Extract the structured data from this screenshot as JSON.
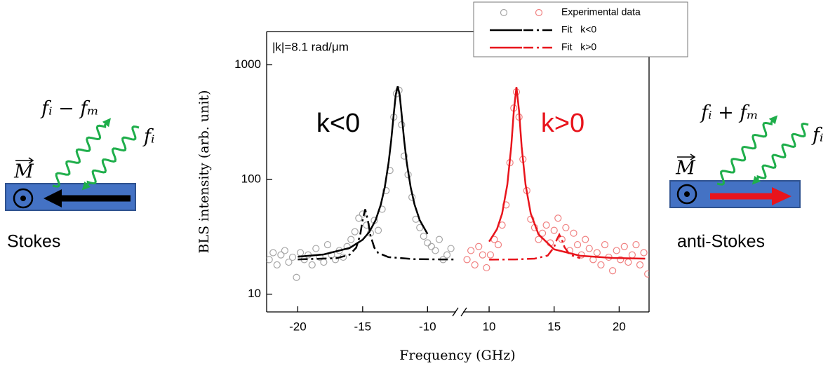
{
  "chart_data": {
    "type": "scatter",
    "x_label": "Frequency (GHz)",
    "y_label": "BLS intensity (arb. unit)",
    "note": "|k|=8.1 rad/μm",
    "log_y": true,
    "ylim": [
      7,
      1950
    ],
    "yticks": [
      10,
      100,
      1000
    ],
    "panels": [
      {
        "xlim": [
          -22.4,
          -7.8
        ],
        "xticks": [
          -20,
          -15,
          -10
        ]
      },
      {
        "xlim": [
          8,
          22.3
        ],
        "xticks": [
          10,
          15,
          20
        ]
      }
    ],
    "annotations": [
      {
        "text": "k<0",
        "color": "#000000"
      },
      {
        "text": "k>0",
        "color": "#e8141c"
      }
    ],
    "series": [
      {
        "name": "Experimental data",
        "marker": "circle",
        "color": "#a6a6a6",
        "x": [
          -22.2,
          -21.9,
          -21.6,
          -21.3,
          -21.0,
          -20.7,
          -20.4,
          -20.1,
          -19.8,
          -19.5,
          -19.2,
          -18.9,
          -18.6,
          -18.3,
          -18.0,
          -17.7,
          -17.4,
          -17.1,
          -16.8,
          -16.5,
          -16.2,
          -15.9,
          -15.6,
          -15.3,
          -15.0,
          -14.7,
          -14.4,
          -14.1,
          -13.8,
          -13.5,
          -13.2,
          -12.9,
          -12.6,
          -12.4,
          -12.2,
          -12.0,
          -11.8,
          -11.5,
          -11.2,
          -10.9,
          -10.6,
          -10.3,
          -10.0,
          -9.7,
          -9.4,
          -9.1,
          -8.8,
          -8.5,
          -8.2
        ],
        "values": [
          20,
          23,
          18,
          22,
          24,
          19,
          21,
          14,
          23,
          20,
          22,
          18,
          25,
          21,
          19,
          27,
          22,
          20,
          24,
          21,
          26,
          30,
          35,
          46,
          50,
          40,
          34,
          44,
          36,
          55,
          80,
          120,
          350,
          560,
          600,
          300,
          160,
          110,
          70,
          45,
          38,
          32,
          28,
          26,
          24,
          30,
          20,
          22,
          25
        ]
      },
      {
        "marker": "circle",
        "color": "#f08080",
        "x": [
          8.3,
          8.6,
          8.9,
          9.2,
          9.5,
          9.8,
          10.1,
          10.4,
          10.7,
          11.0,
          11.3,
          11.6,
          11.9,
          12.1,
          12.3,
          12.6,
          12.9,
          13.2,
          13.5,
          13.8,
          14.1,
          14.4,
          14.7,
          15.0,
          15.3,
          15.6,
          15.9,
          16.2,
          16.5,
          16.8,
          17.1,
          17.4,
          17.7,
          18.0,
          18.3,
          18.6,
          18.9,
          19.2,
          19.5,
          19.8,
          20.1,
          20.4,
          20.7,
          21.0,
          21.3,
          21.6,
          21.9,
          22.2
        ],
        "values": [
          20,
          24,
          18,
          26,
          22,
          17,
          22,
          30,
          27,
          40,
          60,
          140,
          420,
          580,
          350,
          150,
          80,
          45,
          38,
          30,
          34,
          40,
          28,
          36,
          46,
          30,
          38,
          24,
          34,
          27,
          22,
          30,
          25,
          20,
          23,
          18,
          27,
          21,
          16,
          24,
          20,
          26,
          19,
          22,
          27,
          18,
          23,
          15
        ]
      },
      {
        "name": "Fit   k<0",
        "line": "solid",
        "color": "#000000",
        "x": [
          -20,
          -18,
          -16,
          -15,
          -14.5,
          -14,
          -13.6,
          -13.3,
          -13,
          -12.8,
          -12.6,
          -12.45,
          -12.3,
          -12.15,
          -12,
          -11.8,
          -11.6,
          -11.3,
          -11,
          -10.6,
          -10
        ],
        "values": [
          21.2,
          22.2,
          25.3,
          29.8,
          34.7,
          44.2,
          60.4,
          85.3,
          140,
          219,
          374,
          547,
          650,
          547,
          374,
          219,
          140,
          85.3,
          60.4,
          44.2,
          33.5
        ]
      },
      {
        "line": "dashdot",
        "color": "#000000",
        "x": [
          -20,
          -17,
          -16,
          -15.5,
          -15.2,
          -15,
          -14.8,
          -14.6,
          -14.4,
          -14.1,
          -13.8,
          -13,
          -11,
          -9,
          -8
        ],
        "values": [
          20.1,
          20.6,
          22.1,
          25.4,
          32.6,
          44.3,
          55,
          44.3,
          32.6,
          25.4,
          22.9,
          21.0,
          20.2,
          20.1,
          20.1
        ]
      },
      {
        "name": "Fit   k>0",
        "line": "solid",
        "color": "#e8141c",
        "x": [
          10,
          10.6,
          11,
          11.4,
          11.7,
          11.9,
          12.1,
          12.3,
          12.5,
          12.8,
          13.2,
          13.8,
          15,
          17,
          19.5,
          22
        ],
        "values": [
          28.7,
          36.8,
          50.4,
          90.1,
          194,
          398,
          640,
          398,
          194,
          90.1,
          50.4,
          33.2,
          24.6,
          21.6,
          20.7,
          20.4
        ]
      },
      {
        "line": "dashdot",
        "color": "#e8141c",
        "x": [
          10,
          12,
          13.5,
          14.5,
          15,
          15.2,
          15.4,
          15.6,
          15.8,
          16.2,
          17
        ],
        "values": [
          20.0,
          20.1,
          20.4,
          21.7,
          25.7,
          29.8,
          33,
          29.8,
          25.7,
          22.1,
          20.6
        ]
      }
    ]
  },
  "diagrams": [
    {
      "label": "Stokes",
      "magnetization": "M",
      "scattered": "fᵢ − fₘ",
      "incident": "fᵢ"
    },
    {
      "label": "anti-Stokes",
      "magnetization": "M",
      "scattered": "fᵢ + fₘ",
      "incident": "fᵢ"
    }
  ]
}
